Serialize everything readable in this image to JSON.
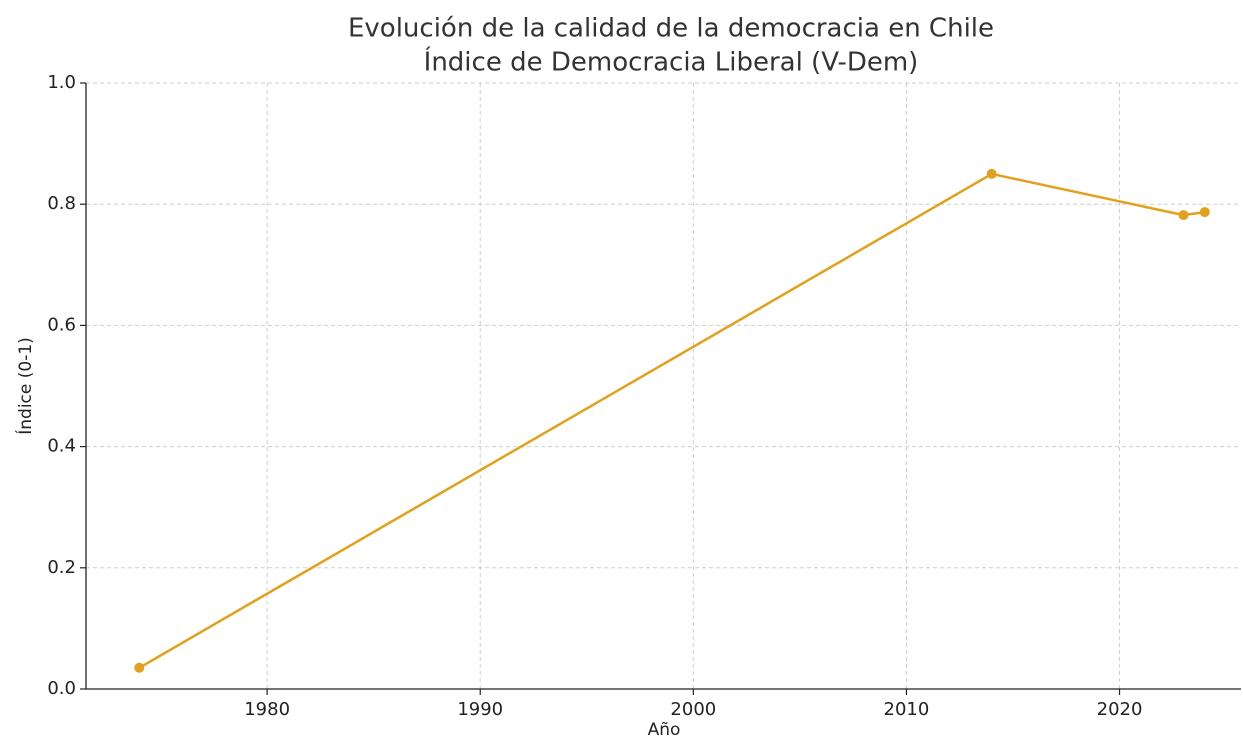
{
  "chart_data": {
    "type": "line",
    "title": "Evolución de la calidad de la democracia en Chile",
    "subtitle": "Índice de Democracia Liberal (V-Dem)",
    "x_label": "Año",
    "y_label": "Índice (0-1)",
    "x": [
      1974,
      2014,
      2023,
      2024
    ],
    "series": [
      {
        "name": "Índice de Democracia Liberal",
        "color": "#e3a01a",
        "values": [
          0.035,
          0.85,
          0.782,
          0.787
        ]
      }
    ],
    "xlim": [
      1971.5,
      2025.7
    ],
    "xticks": [
      1980,
      1990,
      2000,
      2010,
      2020
    ],
    "ylim": [
      0,
      1
    ],
    "yticks": [
      {
        "value": 0,
        "label": "0.0"
      },
      0.2,
      0.4,
      0.6,
      0.8,
      {
        "value": 1,
        "label": "1.0"
      }
    ],
    "grid": true
  }
}
